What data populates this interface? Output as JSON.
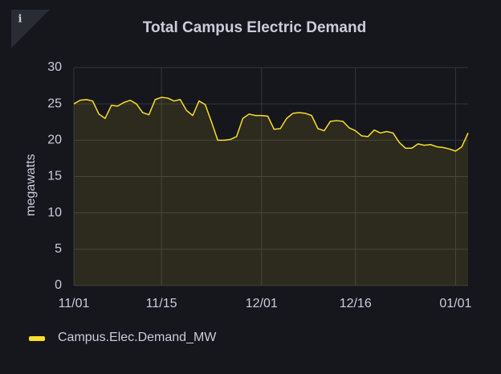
{
  "chart_data": {
    "type": "line",
    "title": "Total Campus Electric Demand",
    "ylabel": "megawatts",
    "x": [
      "11/01",
      "11/02",
      "11/03",
      "11/04",
      "11/05",
      "11/06",
      "11/07",
      "11/08",
      "11/09",
      "11/10",
      "11/11",
      "11/12",
      "11/13",
      "11/14",
      "11/15",
      "11/16",
      "11/17",
      "11/18",
      "11/19",
      "11/20",
      "11/21",
      "11/22",
      "11/23",
      "11/24",
      "11/25",
      "11/26",
      "11/27",
      "11/28",
      "11/29",
      "11/30",
      "12/01",
      "12/02",
      "12/03",
      "12/04",
      "12/05",
      "12/06",
      "12/07",
      "12/08",
      "12/09",
      "12/10",
      "12/11",
      "12/12",
      "12/13",
      "12/14",
      "12/15",
      "12/16",
      "12/17",
      "12/18",
      "12/19",
      "12/20",
      "12/21",
      "12/22",
      "12/23",
      "12/24",
      "12/25",
      "12/26",
      "12/27",
      "12/28",
      "12/29",
      "12/30",
      "12/31",
      "01/01",
      "01/02",
      "01/03"
    ],
    "series": [
      {
        "name": "Campus.Elec.Demand_MW",
        "color": "#fade2a",
        "values": [
          25.0,
          25.5,
          25.6,
          25.4,
          23.6,
          23.0,
          24.8,
          24.7,
          25.2,
          25.5,
          25.0,
          23.8,
          23.5,
          25.6,
          25.9,
          25.8,
          25.4,
          25.6,
          24.1,
          23.4,
          25.4,
          24.9,
          22.5,
          20.0,
          20.0,
          20.1,
          20.5,
          23.0,
          23.6,
          23.4,
          23.4,
          23.3,
          21.5,
          21.6,
          23.0,
          23.7,
          23.8,
          23.7,
          23.4,
          21.6,
          21.3,
          22.6,
          22.7,
          22.6,
          21.7,
          21.3,
          20.6,
          20.5,
          21.4,
          21.0,
          21.2,
          21.0,
          19.7,
          18.9,
          18.9,
          19.5,
          19.3,
          19.4,
          19.1,
          19.0,
          18.8,
          18.5,
          19.1,
          21.0
        ]
      }
    ],
    "xlim": [
      "11/01",
      "01/03"
    ],
    "xticks": [
      "11/01",
      "11/15",
      "12/01",
      "12/16",
      "01/01"
    ],
    "ylim": [
      0,
      30
    ],
    "yticks": [
      0,
      5,
      10,
      15,
      20,
      25,
      30
    ],
    "grid": true
  }
}
